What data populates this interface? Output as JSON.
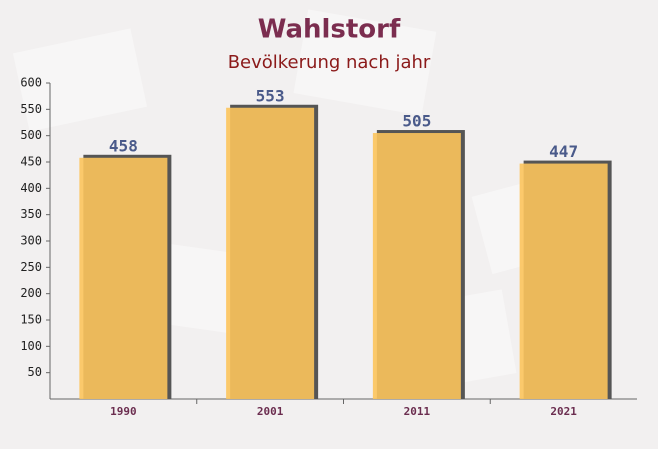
{
  "chart_data": {
    "type": "bar",
    "title": "Wahlstorf",
    "subtitle": "Bevölkerung nach jahr",
    "categories": [
      "1990",
      "2001",
      "2011",
      "2021"
    ],
    "values": [
      458,
      553,
      505,
      447
    ],
    "color": "#fcc45c",
    "ylim": [
      0,
      600
    ],
    "yticks": [
      50,
      100,
      150,
      200,
      250,
      300,
      350,
      400,
      450,
      500,
      550,
      600
    ],
    "grid": false
  }
}
